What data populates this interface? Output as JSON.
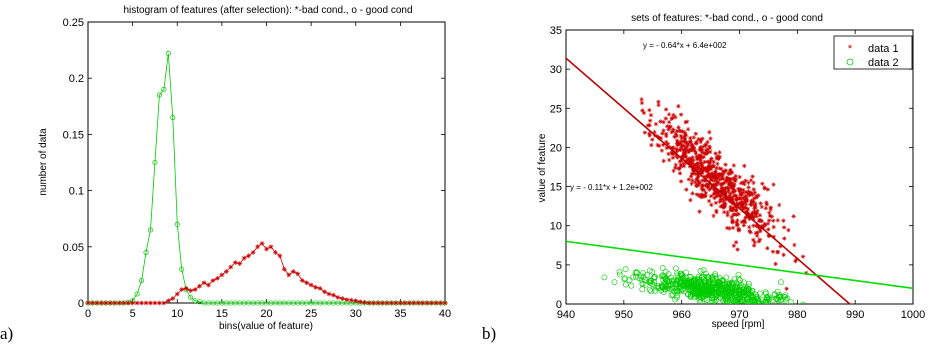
{
  "colors": {
    "bad": "#cc0000",
    "good": "#00cc00",
    "line_bad": "#bb0000",
    "line_good": "#00dd00"
  },
  "chart_data": [
    {
      "type": "line",
      "panel_label": "a)",
      "title": "histogram of features (after selection): *-bad cond., o - good cond",
      "xlabel": "bins(value of feature)",
      "ylabel": "number of data",
      "xlim": [
        0,
        40
      ],
      "ylim": [
        0,
        0.25
      ],
      "xticks": [
        "0",
        "5",
        "10",
        "15",
        "20",
        "25",
        "30",
        "35",
        "40"
      ],
      "yticks": [
        "0",
        "0.05",
        "0.1",
        "0.15",
        "0.2",
        "0.25"
      ],
      "grid": false,
      "series": [
        {
          "marker": "o",
          "color": "#00cc00",
          "x": [
            0,
            0.5,
            1,
            1.5,
            2,
            2.5,
            3,
            3.5,
            4,
            4.5,
            5,
            5.5,
            6,
            6.5,
            7,
            7.5,
            8,
            8.5,
            9,
            9.5,
            10,
            10.5,
            11,
            11.5,
            12,
            12.5,
            13,
            13.5,
            14,
            14.5,
            15,
            15.5,
            16,
            16.5,
            17,
            17.5,
            18,
            18.5,
            19,
            19.5,
            20,
            20.5,
            21,
            21.5,
            22,
            22.5,
            23,
            23.5,
            24,
            24.5,
            25,
            25.5,
            26,
            26.5,
            27,
            27.5,
            28,
            28.5,
            29,
            29.5,
            30,
            30.5,
            31,
            31.5,
            32,
            32.5,
            33,
            33.5,
            34,
            34.5,
            35,
            35.5,
            36,
            36.5,
            37,
            37.5,
            38,
            38.5,
            39,
            39.5,
            40
          ],
          "y": [
            0,
            0,
            0,
            0,
            0,
            0,
            0,
            0,
            0,
            0.0005,
            0.002,
            0.008,
            0.02,
            0.045,
            0.065,
            0.125,
            0.185,
            0.19,
            0.222,
            0.165,
            0.07,
            0.03,
            0.012,
            0.005,
            0.002,
            0.001,
            0,
            0,
            0,
            0,
            0,
            0,
            0,
            0,
            0,
            0,
            0,
            0,
            0,
            0,
            0,
            0,
            0,
            0,
            0,
            0,
            0,
            0,
            0,
            0,
            0,
            0,
            0,
            0,
            0,
            0,
            0,
            0,
            0,
            0,
            0,
            0,
            0,
            0,
            0,
            0,
            0,
            0,
            0,
            0,
            0,
            0,
            0,
            0,
            0,
            0,
            0,
            0,
            0,
            0,
            0
          ]
        },
        {
          "marker": "*",
          "color": "#cc0000",
          "x": [
            0,
            0.5,
            1,
            1.5,
            2,
            2.5,
            3,
            3.5,
            4,
            4.5,
            5,
            5.5,
            6,
            6.5,
            7,
            7.5,
            8,
            8.5,
            9,
            9.5,
            10,
            10.5,
            11,
            11.5,
            12,
            12.5,
            13,
            13.5,
            14,
            14.5,
            15,
            15.5,
            16,
            16.5,
            17,
            17.5,
            18,
            18.5,
            19,
            19.5,
            20,
            20.5,
            21,
            21.5,
            22,
            22.5,
            23,
            23.5,
            24,
            24.5,
            25,
            25.5,
            26,
            26.5,
            27,
            27.5,
            28,
            28.5,
            29,
            29.5,
            30,
            30.5,
            31,
            31.5,
            32,
            32.5,
            33,
            33.5,
            34,
            34.5,
            35,
            35.5,
            36,
            36.5,
            37,
            37.5,
            38,
            38.5,
            39,
            39.5,
            40
          ],
          "y": [
            0,
            0,
            0,
            0,
            0,
            0,
            0,
            0,
            0,
            0,
            0,
            0,
            0,
            0,
            0,
            0,
            0,
            0,
            0.002,
            0.004,
            0.008,
            0.012,
            0.013,
            0.011,
            0.012,
            0.015,
            0.018,
            0.016,
            0.02,
            0.022,
            0.025,
            0.028,
            0.032,
            0.036,
            0.035,
            0.04,
            0.042,
            0.045,
            0.05,
            0.053,
            0.048,
            0.05,
            0.045,
            0.042,
            0.03,
            0.025,
            0.028,
            0.026,
            0.02,
            0.018,
            0.016,
            0.014,
            0.013,
            0.01,
            0.008,
            0.007,
            0.005,
            0.004,
            0.003,
            0.0025,
            0.002,
            0.001,
            0.0005,
            0,
            0,
            0,
            0,
            0,
            0,
            0,
            0,
            0,
            0,
            0,
            0,
            0,
            0,
            0,
            0,
            0,
            0
          ]
        }
      ]
    },
    {
      "type": "scatter",
      "panel_label": "b)",
      "title": "sets of features: *-bad cond., o - good cond",
      "xlabel": "speed [rpm]",
      "ylabel": "value of feature",
      "xlim": [
        940,
        1000
      ],
      "ylim": [
        0,
        35
      ],
      "xticks": [
        "940",
        "950",
        "960",
        "970",
        "980",
        "990",
        "1000"
      ],
      "yticks": [
        "0",
        "5",
        "10",
        "15",
        "20",
        "25",
        "30",
        "35"
      ],
      "grid": false,
      "legend": {
        "placement": "top-right",
        "entries": [
          "data 1",
          "data 2"
        ]
      },
      "series": [
        {
          "name": "data 1",
          "marker": "*",
          "color": "#cc0000",
          "n_points": 700,
          "x_range": [
            953,
            986
          ],
          "trend": {
            "label": "y = - 0.64*x + 6.4e+002",
            "slope": -0.64,
            "intercept": 636
          }
        },
        {
          "name": "data 2",
          "marker": "o",
          "color": "#00cc00",
          "n_points": 650,
          "x_range": [
            946,
            985
          ],
          "trend": {
            "label": "y = - 0.11*x + 1.2e+002",
            "slope": -0.11,
            "intercept": 114
          }
        }
      ]
    }
  ]
}
